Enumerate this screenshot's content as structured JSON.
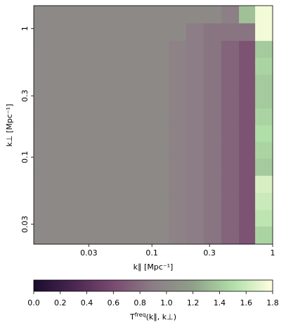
{
  "chart_data": {
    "type": "heatmap",
    "xlabel": "k∥ [Mpc⁻¹]",
    "ylabel": "k⊥ [Mpc⁻¹]",
    "x_scale": "log",
    "y_scale": "log",
    "xlim": [
      0.0105,
      1
    ],
    "ylim": [
      0.021,
      1.51
    ],
    "xticks": [
      0.03,
      0.1,
      0.3,
      1
    ],
    "yticks": [
      0.03,
      0.1,
      0.3,
      1
    ],
    "x_edges": [
      0.0105,
      0.138,
      0.193,
      0.269,
      0.377,
      0.526,
      0.716,
      1
    ],
    "y_edges": [
      0.021,
      0.029,
      0.039,
      0.053,
      0.072,
      0.098,
      0.132,
      0.178,
      0.241,
      0.326,
      0.441,
      0.597,
      0.807,
      1.106,
      1.51
    ],
    "values": [
      [
        1.0,
        0.95,
        0.9,
        0.85,
        0.75,
        0.65,
        1.45
      ],
      [
        1.0,
        0.95,
        0.9,
        0.85,
        0.75,
        0.65,
        1.55
      ],
      [
        1.0,
        0.95,
        0.9,
        0.85,
        0.75,
        0.65,
        1.6
      ],
      [
        1.0,
        0.95,
        0.9,
        0.85,
        0.75,
        0.65,
        1.65
      ],
      [
        1.0,
        0.95,
        0.9,
        0.85,
        0.75,
        0.65,
        1.4
      ],
      [
        1.0,
        0.95,
        0.9,
        0.85,
        0.75,
        0.65,
        1.45
      ],
      [
        1.0,
        0.95,
        0.9,
        0.85,
        0.75,
        0.65,
        1.5
      ],
      [
        1.0,
        0.95,
        0.9,
        0.85,
        0.75,
        0.65,
        1.45
      ],
      [
        1.0,
        0.95,
        0.9,
        0.85,
        0.75,
        0.65,
        1.4
      ],
      [
        1.0,
        0.95,
        0.9,
        0.85,
        0.75,
        0.65,
        1.4
      ],
      [
        1.0,
        0.95,
        0.9,
        0.85,
        0.75,
        0.65,
        1.45
      ],
      [
        1.0,
        0.95,
        0.9,
        0.85,
        0.75,
        0.65,
        1.4
      ],
      [
        1.0,
        1.0,
        0.9,
        0.85,
        0.85,
        0.85,
        1.75
      ],
      [
        1.0,
        1.0,
        1.0,
        1.0,
        0.92,
        1.35,
        1.75
      ]
    ],
    "colormap": [
      "#1b0c2e",
      "#4a2651",
      "#7a4a70",
      "#8c7d86",
      "#8fa088",
      "#b0dfa8",
      "#ffffe0"
    ],
    "clim": [
      0,
      1.8
    ],
    "colorbar_ticks": [
      {
        "value": 0,
        "label": "0.0"
      },
      0.2,
      0.4,
      0.6,
      0.8,
      {
        "value": 1,
        "label": "1.0"
      },
      1.2,
      1.4,
      1.6,
      1.8
    ],
    "colorbar_label": [
      "T",
      "freq",
      "(k∥, k⊥)"
    ]
  }
}
